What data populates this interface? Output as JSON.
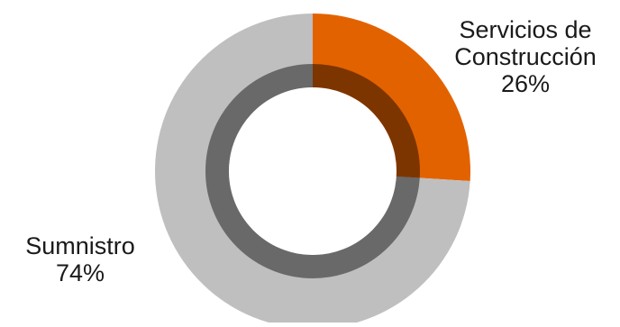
{
  "chart_data": {
    "type": "pie",
    "variant": "donut",
    "title": "",
    "slices": [
      {
        "label": "Servicios de Construcción",
        "value": 26,
        "value_label": "26%",
        "color": "#E36200"
      },
      {
        "label": "Sumnistro",
        "value": 74,
        "value_label": "74%",
        "color": "#BFBFBF"
      }
    ],
    "inner_ring_color": "#000000",
    "inner_ring_opacity": 0.45,
    "legend": "none"
  }
}
